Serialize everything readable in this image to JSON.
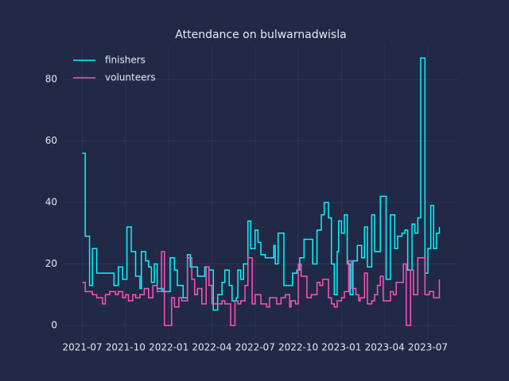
{
  "chart_data": {
    "type": "line",
    "title": "Attendance on bulwarnadwisla",
    "xticks": [
      {
        "value": 0,
        "label": "2021-07"
      },
      {
        "value": 3,
        "label": "2021-10"
      },
      {
        "value": 6,
        "label": "2022-01"
      },
      {
        "value": 9,
        "label": "2022-04"
      },
      {
        "value": 12,
        "label": "2022-07"
      },
      {
        "value": 15,
        "label": "2022-10"
      },
      {
        "value": 18,
        "label": "2023-01"
      },
      {
        "value": 21,
        "label": "2023-04"
      },
      {
        "value": 24,
        "label": "2023-07"
      }
    ],
    "xlim": [
      -1.3,
      26.1
    ],
    "ylim": [
      -4.4,
      90.9
    ],
    "yticks": [
      0,
      20,
      40,
      60,
      80
    ],
    "grid": true,
    "legend": "upper left",
    "step": "post",
    "series": [
      {
        "name": "finishers",
        "color": "#08F7FE",
        "x": [
          0,
          0.2,
          0.5,
          0.7,
          1,
          2.2,
          2.5,
          2.8,
          3.1,
          3.4,
          3.7,
          4,
          4.1,
          4.4,
          4.6,
          4.8,
          5,
          5.2,
          5.6,
          6.1,
          6.4,
          6.6,
          7,
          7.3,
          7.5,
          8,
          8.5,
          8.8,
          9.1,
          9.4,
          9.7,
          9.9,
          10.2,
          10.4,
          10.7,
          10.8,
          11,
          11.2,
          11.5,
          11.7,
          12,
          12.2,
          12.4,
          12.7,
          13.3,
          13.4,
          13.6,
          14,
          14.6,
          14.9,
          15.1,
          15.4,
          16,
          16.3,
          16.6,
          16.8,
          17.1,
          17.3,
          17.5,
          17.7,
          17.8,
          18,
          18.2,
          18.4,
          18.6,
          18.8,
          19.1,
          19.4,
          19.6,
          19.8,
          20.1,
          20.3,
          20.7,
          21.1,
          21.4,
          21.7,
          21.9,
          22.2,
          22.4,
          22.6,
          22.9,
          23.1,
          23.3,
          23.5,
          23.8,
          24,
          24.2,
          24.4,
          24.6,
          24.8
        ],
        "values": [
          56,
          29,
          13,
          25,
          17,
          13,
          19,
          15,
          32,
          24,
          16,
          12,
          24,
          21,
          19,
          14,
          20,
          12,
          11,
          22,
          18,
          13,
          9,
          23,
          19,
          16,
          19,
          18,
          5,
          10,
          14,
          18,
          13,
          8,
          9,
          18,
          15,
          20,
          34,
          25,
          31,
          27,
          23,
          22,
          26,
          20,
          30,
          13,
          17,
          18,
          22,
          28,
          20,
          31,
          36,
          40,
          35,
          20,
          10,
          24,
          34,
          30,
          36,
          20,
          10,
          21,
          26,
          22,
          32,
          19,
          36,
          24,
          42,
          15,
          36,
          25,
          29,
          30,
          31,
          18,
          33,
          30,
          35,
          87,
          17,
          25,
          39,
          25,
          30,
          32
        ]
      },
      {
        "name": "volunteers",
        "color": "#FE53BB",
        "x": [
          0,
          0.2,
          0.7,
          1,
          1.4,
          1.6,
          1.9,
          2.3,
          2.5,
          2.8,
          3,
          3.2,
          3.5,
          3.7,
          4,
          4.3,
          4.6,
          4.9,
          5.2,
          5.5,
          5.7,
          6.2,
          6.4,
          6.7,
          6.9,
          7.3,
          7.6,
          7.8,
          8,
          8.3,
          8.6,
          8.8,
          9,
          9.7,
          9.9,
          10.3,
          10.6,
          10.8,
          11,
          11.3,
          11.5,
          11.8,
          12,
          12.4,
          12.8,
          13,
          13.5,
          13.8,
          14.1,
          14.4,
          14.5,
          14.8,
          15,
          15.2,
          15.6,
          15.9,
          16.3,
          16.5,
          16.7,
          17.1,
          17.3,
          17.5,
          17.7,
          18,
          18.2,
          18.5,
          18.7,
          19,
          19.2,
          19.3,
          19.6,
          19.8,
          20.1,
          20.3,
          20.5,
          20.7,
          20.9,
          21.4,
          21.6,
          21.8,
          22.3,
          22.5,
          22.8,
          23,
          23.3,
          23.8,
          24.1,
          24.4,
          24.8
        ],
        "values": [
          14,
          11,
          10,
          9,
          7,
          10,
          11,
          10,
          11,
          9,
          10,
          8,
          10,
          9,
          10,
          12,
          9,
          13,
          11,
          24,
          0,
          9,
          6,
          9,
          8,
          22,
          15,
          10,
          12,
          7,
          19,
          13,
          7,
          8,
          7,
          0,
          8,
          7,
          8,
          13,
          22,
          7,
          10,
          7,
          6,
          9,
          7,
          9,
          10,
          6,
          8,
          7,
          20,
          16,
          9,
          10,
          14,
          13,
          15,
          9,
          7,
          6,
          8,
          9,
          11,
          21,
          12,
          10,
          8,
          9,
          17,
          7,
          8,
          10,
          13,
          16,
          8,
          11,
          10,
          14,
          20,
          0,
          18,
          10,
          22,
          10,
          11,
          9,
          15
        ]
      }
    ]
  }
}
